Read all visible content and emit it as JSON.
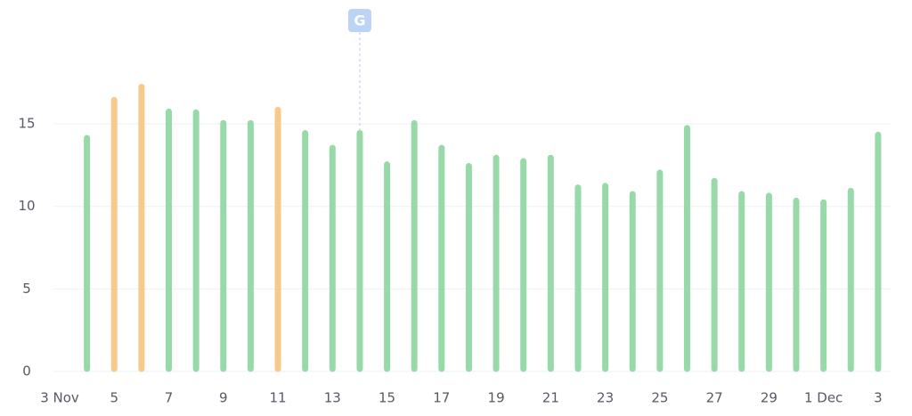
{
  "chart_data": {
    "type": "bar",
    "categories": [
      "3 Nov",
      null,
      "5",
      null,
      "7",
      null,
      "9",
      null,
      "11",
      null,
      "13",
      null,
      "15",
      null,
      "17",
      null,
      "19",
      null,
      "21",
      null,
      "23",
      null,
      "25",
      null,
      "27",
      null,
      "29",
      null,
      "1 Dec",
      null,
      "3"
    ],
    "values": [
      null,
      14.3,
      16.6,
      17.4,
      15.9,
      15.85,
      15.2,
      15.2,
      16.0,
      14.6,
      13.7,
      14.6,
      12.7,
      15.2,
      13.7,
      12.6,
      13.1,
      12.9,
      13.1,
      11.3,
      11.4,
      10.9,
      12.2,
      14.9,
      11.7,
      10.9,
      10.8,
      10.5,
      10.4,
      11.1,
      14.5
    ],
    "colors": [
      null,
      "#98d9a9",
      "#f7c98a",
      "#f7c98a",
      "#98d9a9",
      "#98d9a9",
      "#98d9a9",
      "#98d9a9",
      "#f7c98a",
      "#98d9a9",
      "#98d9a9",
      "#98d9a9",
      "#98d9a9",
      "#98d9a9",
      "#98d9a9",
      "#98d9a9",
      "#98d9a9",
      "#98d9a9",
      "#98d9a9",
      "#98d9a9",
      "#98d9a9",
      "#98d9a9",
      "#98d9a9",
      "#98d9a9",
      "#98d9a9",
      "#98d9a9",
      "#98d9a9",
      "#98d9a9",
      "#98d9a9",
      "#98d9a9",
      "#98d9a9"
    ],
    "ylim": [
      0,
      18.5
    ],
    "yticks": [
      0,
      5,
      10,
      15
    ],
    "grid": true,
    "annotation": {
      "text": "G",
      "at": 11
    }
  }
}
